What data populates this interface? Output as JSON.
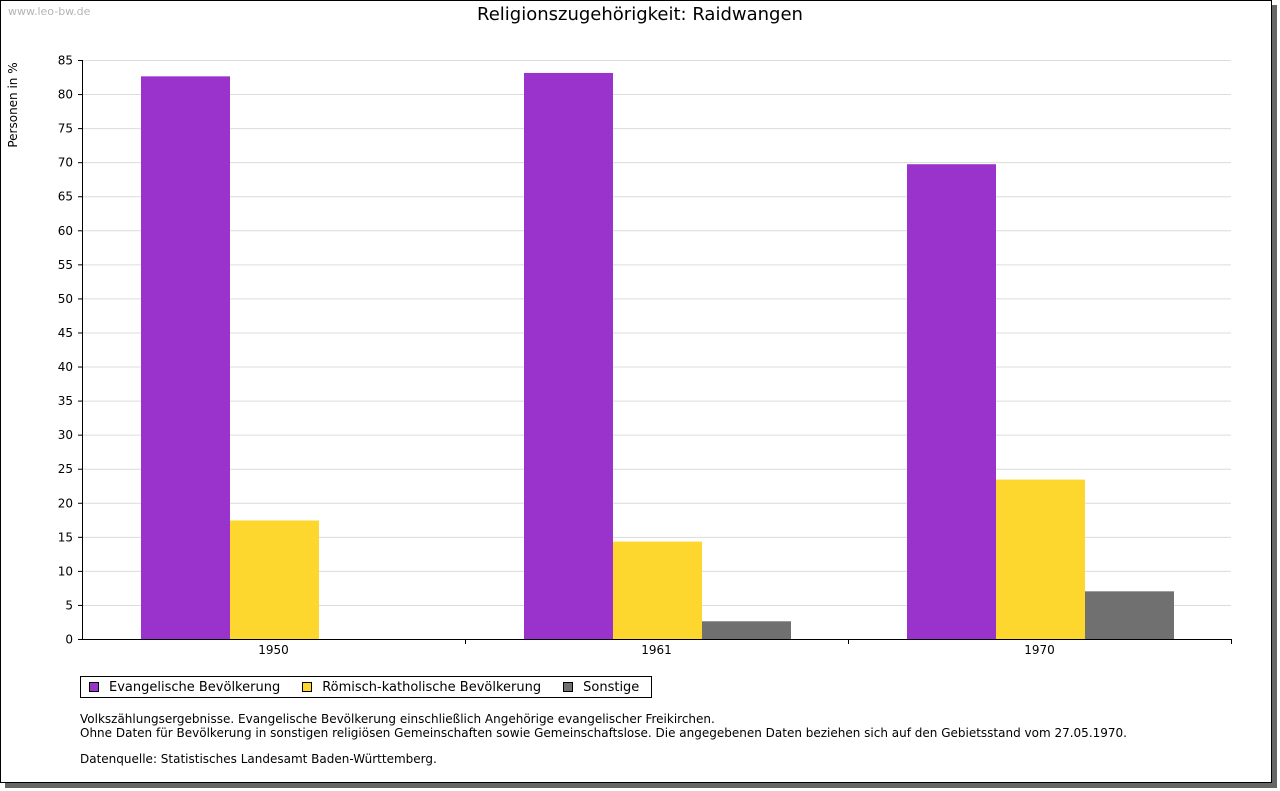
{
  "watermark": "www.leo-bw.de",
  "chart_data": {
    "type": "bar",
    "title": "Religionszugehörigkeit: Raidwangen",
    "xlabel": "",
    "ylabel": "Personen in %",
    "ylim": [
      0,
      85
    ],
    "ytick_step": 5,
    "categories": [
      "1950",
      "1961",
      "1970"
    ],
    "series": [
      {
        "name": "Evangelische Bevölkerung",
        "color": "#9933cc",
        "values": [
          82.6,
          83.1,
          69.7
        ]
      },
      {
        "name": "Römisch-katholische Bevölkerung",
        "color": "#fdd62e",
        "values": [
          17.4,
          14.3,
          23.4
        ]
      },
      {
        "name": "Sonstige",
        "color": "#707070",
        "values": [
          0,
          2.6,
          7.0
        ]
      }
    ],
    "grid": true,
    "legend_position": "bottom-left"
  },
  "notes": {
    "line1": "Volkszählungsergebnisse. Evangelische Bevölkerung einschließlich Angehörige evangelischer Freikirchen.",
    "line2": "Ohne Daten für Bevölkerung in sonstigen religiösen Gemeinschaften sowie Gemeinschaftslose. Die angegebenen Daten beziehen sich auf den Gebietsstand vom 27.05.1970.",
    "source": "Datenquelle: Statistisches Landesamt Baden-Württemberg."
  }
}
